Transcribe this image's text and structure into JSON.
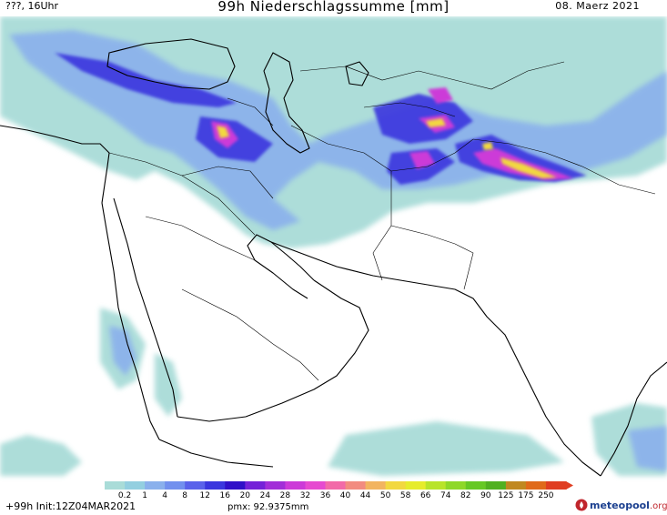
{
  "header": {
    "left": "???, 16Uhr",
    "title": "99h Niederschlagssumme [mm]",
    "right": "08. Maerz 2021"
  },
  "legend": {
    "labels": [
      "0.2",
      "1",
      "4",
      "8",
      "12",
      "16",
      "20",
      "24",
      "28",
      "32",
      "36",
      "40",
      "44",
      "50",
      "58",
      "66",
      "74",
      "82",
      "90",
      "125",
      "175",
      "250"
    ],
    "colors": [
      "#a9dcd8",
      "#93cfe0",
      "#8ab0ec",
      "#7290ee",
      "#5a62ea",
      "#3a36de",
      "#3010c8",
      "#7422d8",
      "#a22ed8",
      "#cc3ad8",
      "#e64ad0",
      "#f26aa8",
      "#f28c80",
      "#f2b460",
      "#f2d840",
      "#e6ec2c",
      "#b8e42a",
      "#8ed828",
      "#66c824",
      "#50b020",
      "#c08820",
      "#e06a1a",
      "#e03e22"
    ]
  },
  "footer": {
    "lead": "+99h Init:12Z04MAR2021",
    "pmx": "pmx: 92.9375mm",
    "logo_main": "meteopool",
    "logo_suffix": ".org"
  }
}
